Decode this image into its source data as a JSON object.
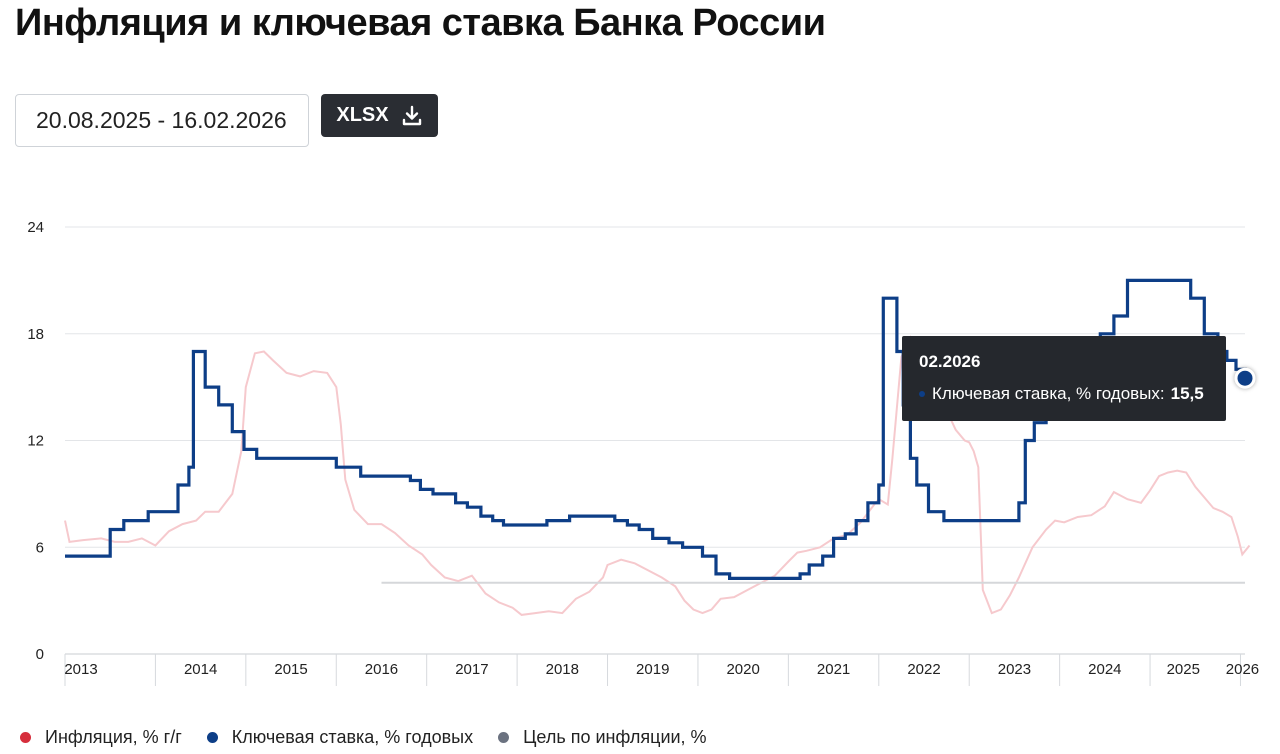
{
  "page": {
    "title": "Инфляция и ключевая ставка Банка России",
    "date_range": "20.08.2025 - 16.02.2026",
    "export_label": "XLSX"
  },
  "tooltip": {
    "date": "02.2026",
    "series_label": "Ключевая ставка, % годовых:",
    "value": "15,5",
    "color": "#0d3e87"
  },
  "colors": {
    "inflation": "#d62e3c",
    "key_rate": "#0d3e87",
    "target": "#6b7280"
  },
  "chart_data": {
    "type": "line",
    "title": "Инфляция и ключевая ставка Банка России",
    "xlabel": "",
    "ylabel": "",
    "xlim": [
      2013.0,
      2026.05
    ],
    "ylim": [
      0,
      24
    ],
    "y_ticks": [
      "0",
      "6",
      "12",
      "18",
      "24"
    ],
    "x_ticks": [
      {
        "label": "2013",
        "x": 2013.0
      },
      {
        "label": "2014",
        "x": 2014.0
      },
      {
        "label": "2015",
        "x": 2015.0
      },
      {
        "label": "2016",
        "x": 2016.0
      },
      {
        "label": "2017",
        "x": 2017.0
      },
      {
        "label": "2018",
        "x": 2018.0
      },
      {
        "label": "2019",
        "x": 2019.0
      },
      {
        "label": "2020",
        "x": 2020.0
      },
      {
        "label": "2021",
        "x": 2021.0
      },
      {
        "label": "2022",
        "x": 2022.0
      },
      {
        "label": "2023",
        "x": 2023.0
      },
      {
        "label": "2024",
        "x": 2024.0
      },
      {
        "label": "2025",
        "x": 2025.0
      },
      {
        "label": "2026",
        "x": 2026.0
      }
    ],
    "grid": true,
    "legend_position": "bottom-left",
    "series": [
      {
        "name": "Инфляция, % г/г",
        "style": "line",
        "color": "#f6c9cd",
        "points": [
          [
            2013.0,
            7.5
          ],
          [
            2013.05,
            6.3
          ],
          [
            2013.2,
            6.4
          ],
          [
            2013.4,
            6.5
          ],
          [
            2013.55,
            6.3
          ],
          [
            2013.7,
            6.3
          ],
          [
            2013.85,
            6.5
          ],
          [
            2014.0,
            6.1
          ],
          [
            2014.15,
            6.9
          ],
          [
            2014.3,
            7.3
          ],
          [
            2014.45,
            7.5
          ],
          [
            2014.55,
            8.0
          ],
          [
            2014.7,
            8.0
          ],
          [
            2014.85,
            9.0
          ],
          [
            2014.95,
            11.4
          ],
          [
            2015.0,
            15.0
          ],
          [
            2015.1,
            16.9
          ],
          [
            2015.2,
            17.0
          ],
          [
            2015.3,
            16.5
          ],
          [
            2015.45,
            15.8
          ],
          [
            2015.6,
            15.6
          ],
          [
            2015.75,
            15.9
          ],
          [
            2015.9,
            15.8
          ],
          [
            2016.0,
            15.0
          ],
          [
            2016.05,
            12.9
          ],
          [
            2016.1,
            9.8
          ],
          [
            2016.2,
            8.1
          ],
          [
            2016.35,
            7.3
          ],
          [
            2016.5,
            7.3
          ],
          [
            2016.65,
            6.8
          ],
          [
            2016.8,
            6.1
          ],
          [
            2016.95,
            5.6
          ],
          [
            2017.05,
            5.0
          ],
          [
            2017.2,
            4.3
          ],
          [
            2017.35,
            4.1
          ],
          [
            2017.5,
            4.4
          ],
          [
            2017.65,
            3.4
          ],
          [
            2017.8,
            2.9
          ],
          [
            2017.95,
            2.6
          ],
          [
            2018.05,
            2.2
          ],
          [
            2018.2,
            2.3
          ],
          [
            2018.35,
            2.4
          ],
          [
            2018.5,
            2.3
          ],
          [
            2018.65,
            3.1
          ],
          [
            2018.8,
            3.5
          ],
          [
            2018.95,
            4.3
          ],
          [
            2019.0,
            5.0
          ],
          [
            2019.15,
            5.3
          ],
          [
            2019.3,
            5.1
          ],
          [
            2019.45,
            4.7
          ],
          [
            2019.6,
            4.3
          ],
          [
            2019.75,
            3.8
          ],
          [
            2019.85,
            3.0
          ],
          [
            2019.95,
            2.5
          ],
          [
            2020.05,
            2.3
          ],
          [
            2020.15,
            2.5
          ],
          [
            2020.25,
            3.1
          ],
          [
            2020.4,
            3.2
          ],
          [
            2020.55,
            3.6
          ],
          [
            2020.7,
            4.0
          ],
          [
            2020.85,
            4.4
          ],
          [
            2021.0,
            5.2
          ],
          [
            2021.1,
            5.7
          ],
          [
            2021.2,
            5.8
          ],
          [
            2021.35,
            6.0
          ],
          [
            2021.5,
            6.5
          ],
          [
            2021.65,
            6.7
          ],
          [
            2021.8,
            7.4
          ],
          [
            2021.95,
            8.4
          ],
          [
            2022.0,
            8.7
          ],
          [
            2022.1,
            8.4
          ],
          [
            2022.15,
            11.0
          ],
          [
            2022.25,
            16.7
          ],
          [
            2022.35,
            17.8
          ],
          [
            2022.45,
            17.0
          ],
          [
            2022.55,
            15.9
          ],
          [
            2022.65,
            14.3
          ],
          [
            2022.75,
            13.7
          ],
          [
            2022.85,
            12.6
          ],
          [
            2022.95,
            12.0
          ],
          [
            2023.0,
            11.9
          ],
          [
            2023.05,
            11.4
          ],
          [
            2023.1,
            10.5
          ],
          [
            2023.15,
            3.6
          ],
          [
            2023.25,
            2.3
          ],
          [
            2023.35,
            2.5
          ],
          [
            2023.45,
            3.3
          ],
          [
            2023.55,
            4.3
          ],
          [
            2023.7,
            6.0
          ],
          [
            2023.85,
            7.0
          ],
          [
            2023.95,
            7.5
          ],
          [
            2024.05,
            7.4
          ],
          [
            2024.2,
            7.7
          ],
          [
            2024.35,
            7.8
          ],
          [
            2024.5,
            8.3
          ],
          [
            2024.6,
            9.1
          ],
          [
            2024.75,
            8.7
          ],
          [
            2024.9,
            8.5
          ],
          [
            2025.0,
            9.2
          ],
          [
            2025.1,
            10.0
          ],
          [
            2025.2,
            10.2
          ],
          [
            2025.3,
            10.3
          ],
          [
            2025.4,
            10.2
          ],
          [
            2025.5,
            9.4
          ],
          [
            2025.6,
            8.8
          ],
          [
            2025.7,
            8.2
          ],
          [
            2025.8,
            8.0
          ],
          [
            2025.9,
            7.7
          ],
          [
            2025.97,
            6.6
          ],
          [
            2026.02,
            5.6
          ],
          [
            2026.1,
            6.1
          ]
        ]
      },
      {
        "name": "Ключевая ставка, % годовых",
        "style": "step",
        "color": "#0d3e87",
        "points": [
          [
            2013.0,
            5.5
          ],
          [
            2013.5,
            5.5
          ],
          [
            2013.5,
            7.0
          ],
          [
            2013.65,
            7.0
          ],
          [
            2013.65,
            7.5
          ],
          [
            2013.92,
            7.5
          ],
          [
            2013.92,
            8.0
          ],
          [
            2014.25,
            8.0
          ],
          [
            2014.25,
            9.5
          ],
          [
            2014.37,
            9.5
          ],
          [
            2014.37,
            10.5
          ],
          [
            2014.42,
            10.5
          ],
          [
            2014.42,
            17.0
          ],
          [
            2014.55,
            17.0
          ],
          [
            2014.55,
            15.0
          ],
          [
            2014.7,
            15.0
          ],
          [
            2014.7,
            14.0
          ],
          [
            2014.85,
            14.0
          ],
          [
            2014.85,
            12.5
          ],
          [
            2014.98,
            12.5
          ],
          [
            2014.98,
            11.5
          ],
          [
            2015.12,
            11.5
          ],
          [
            2015.12,
            11.0
          ],
          [
            2016.0,
            11.0
          ],
          [
            2016.0,
            10.5
          ],
          [
            2016.27,
            10.5
          ],
          [
            2016.27,
            10.0
          ],
          [
            2016.82,
            10.0
          ],
          [
            2016.82,
            9.75
          ],
          [
            2016.93,
            9.75
          ],
          [
            2016.93,
            9.25
          ],
          [
            2017.07,
            9.25
          ],
          [
            2017.07,
            9.0
          ],
          [
            2017.32,
            9.0
          ],
          [
            2017.32,
            8.5
          ],
          [
            2017.45,
            8.5
          ],
          [
            2017.45,
            8.25
          ],
          [
            2017.6,
            8.25
          ],
          [
            2017.6,
            7.75
          ],
          [
            2017.73,
            7.75
          ],
          [
            2017.73,
            7.5
          ],
          [
            2017.85,
            7.5
          ],
          [
            2017.85,
            7.25
          ],
          [
            2018.33,
            7.25
          ],
          [
            2018.33,
            7.5
          ],
          [
            2018.58,
            7.5
          ],
          [
            2018.58,
            7.75
          ],
          [
            2019.08,
            7.75
          ],
          [
            2019.08,
            7.5
          ],
          [
            2019.22,
            7.5
          ],
          [
            2019.22,
            7.25
          ],
          [
            2019.35,
            7.25
          ],
          [
            2019.35,
            7.0
          ],
          [
            2019.5,
            7.0
          ],
          [
            2019.5,
            6.5
          ],
          [
            2019.68,
            6.5
          ],
          [
            2019.68,
            6.25
          ],
          [
            2019.83,
            6.25
          ],
          [
            2019.83,
            6.0
          ],
          [
            2020.05,
            6.0
          ],
          [
            2020.05,
            5.5
          ],
          [
            2020.2,
            5.5
          ],
          [
            2020.2,
            4.5
          ],
          [
            2020.35,
            4.5
          ],
          [
            2020.35,
            4.25
          ],
          [
            2021.13,
            4.25
          ],
          [
            2021.13,
            4.5
          ],
          [
            2021.23,
            4.5
          ],
          [
            2021.23,
            5.0
          ],
          [
            2021.38,
            5.0
          ],
          [
            2021.38,
            5.5
          ],
          [
            2021.5,
            5.5
          ],
          [
            2021.5,
            6.5
          ],
          [
            2021.63,
            6.5
          ],
          [
            2021.63,
            6.75
          ],
          [
            2021.75,
            6.75
          ],
          [
            2021.75,
            7.5
          ],
          [
            2021.88,
            7.5
          ],
          [
            2021.88,
            8.5
          ],
          [
            2022.0,
            8.5
          ],
          [
            2022.0,
            9.5
          ],
          [
            2022.05,
            9.5
          ],
          [
            2022.05,
            20.0
          ],
          [
            2022.2,
            20.0
          ],
          [
            2022.2,
            17.0
          ],
          [
            2022.27,
            17.0
          ],
          [
            2022.27,
            14.0
          ],
          [
            2022.35,
            14.0
          ],
          [
            2022.35,
            11.0
          ],
          [
            2022.42,
            11.0
          ],
          [
            2022.42,
            9.5
          ],
          [
            2022.55,
            9.5
          ],
          [
            2022.55,
            8.0
          ],
          [
            2022.72,
            8.0
          ],
          [
            2022.72,
            7.5
          ],
          [
            2023.55,
            7.5
          ],
          [
            2023.55,
            8.5
          ],
          [
            2023.62,
            8.5
          ],
          [
            2023.62,
            12.0
          ],
          [
            2023.72,
            12.0
          ],
          [
            2023.72,
            13.0
          ],
          [
            2023.85,
            13.0
          ],
          [
            2023.85,
            15.0
          ],
          [
            2023.95,
            15.0
          ],
          [
            2023.95,
            16.0
          ],
          [
            2024.45,
            16.0
          ],
          [
            2024.45,
            18.0
          ],
          [
            2024.6,
            18.0
          ],
          [
            2024.6,
            19.0
          ],
          [
            2024.75,
            19.0
          ],
          [
            2024.75,
            21.0
          ],
          [
            2025.45,
            21.0
          ],
          [
            2025.45,
            20.0
          ],
          [
            2025.6,
            20.0
          ],
          [
            2025.6,
            18.0
          ],
          [
            2025.75,
            18.0
          ],
          [
            2025.75,
            17.0
          ],
          [
            2025.85,
            17.0
          ],
          [
            2025.85,
            16.5
          ],
          [
            2025.95,
            16.5
          ],
          [
            2025.95,
            16.0
          ],
          [
            2026.05,
            16.0
          ],
          [
            2026.05,
            15.5
          ]
        ],
        "highlight": [
          2026.05,
          15.5
        ]
      },
      {
        "name": "Цель по инфляции, %",
        "style": "line",
        "color": "#d5d7da",
        "points": [
          [
            2016.5,
            4.0
          ],
          [
            2026.05,
            4.0
          ]
        ]
      }
    ]
  },
  "legend": [
    {
      "label": "Инфляция, % г/г",
      "color": "#d62e3c"
    },
    {
      "label": "Ключевая ставка, % годовых",
      "color": "#0d3e87"
    },
    {
      "label": "Цель по инфляции, %",
      "color": "#6b7280"
    }
  ]
}
